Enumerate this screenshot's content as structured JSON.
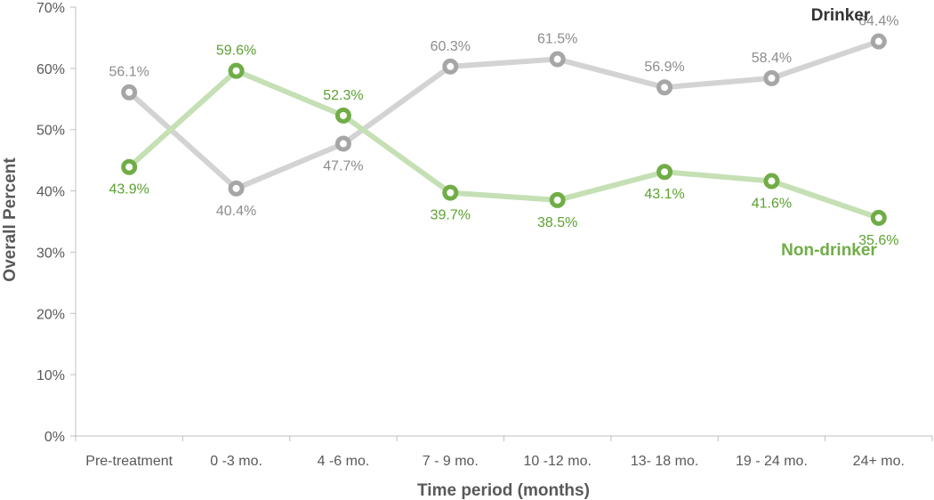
{
  "chart_data": {
    "type": "line",
    "xlabel": "Time period (months)",
    "ylabel": "Overall Percent",
    "categories": [
      "Pre-treatment",
      "0 -3 mo.",
      "4 -6 mo.",
      "7 - 9 mo.",
      "10 -12 mo.",
      "13- 18 mo.",
      "19 - 24 mo.",
      "24+ mo."
    ],
    "ylim": [
      0,
      70
    ],
    "yticks": [
      "0%",
      "10%",
      "20%",
      "30%",
      "40%",
      "50%",
      "60%",
      "70%"
    ],
    "grid": false,
    "series": [
      {
        "name": "Drinker",
        "values": [
          56.1,
          40.4,
          47.7,
          60.3,
          61.5,
          56.9,
          58.4,
          64.4
        ],
        "labels": [
          "56.1%",
          "40.4%",
          "47.7%",
          "60.3%",
          "61.5%",
          "56.9%",
          "58.4%",
          "64.4%"
        ],
        "line_color": "#d3d3d3",
        "marker_color": "#a6a6a6",
        "label_color": "#8c8c8c",
        "name_color": "#333333"
      },
      {
        "name": "Non-drinker",
        "values": [
          43.9,
          59.6,
          52.3,
          39.7,
          38.5,
          43.1,
          41.6,
          35.6
        ],
        "labels": [
          "43.9%",
          "59.6%",
          "52.3%",
          "39.7%",
          "38.5%",
          "43.1%",
          "41.6%",
          "35.6%"
        ],
        "line_color": "#c5e0b4",
        "marker_color": "#70ad47",
        "label_color": "#5ba131",
        "name_color": "#70ad47"
      }
    ]
  }
}
